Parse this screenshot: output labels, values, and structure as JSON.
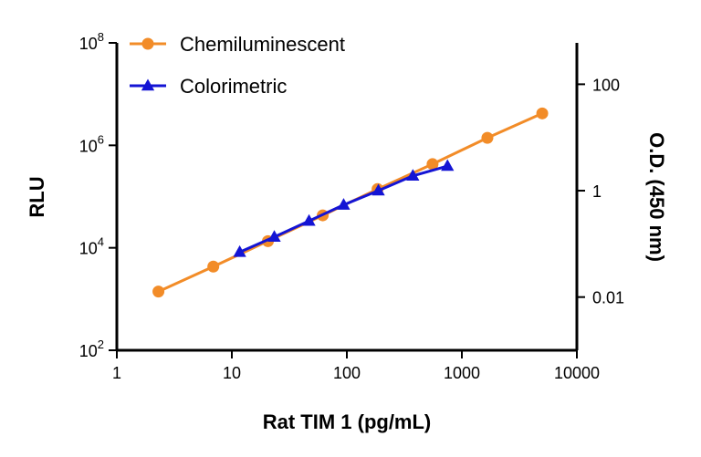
{
  "chart_data": {
    "type": "line",
    "xlabel": "Rat TIM 1 (pg/mL)",
    "ylabel_left": "RLU",
    "ylabel_right": "O.D. (450 nm)",
    "x_scale": "log",
    "y_left_scale": "log",
    "y_right_scale": "log",
    "xlim": [
      1,
      10000
    ],
    "ylim_left": [
      100,
      100000000
    ],
    "ylim_right": [
      0.001,
      600
    ],
    "x_ticks": [
      {
        "value": 1,
        "label": "1"
      },
      {
        "value": 10,
        "label": "10"
      },
      {
        "value": 100,
        "label": "100"
      },
      {
        "value": 1000,
        "label": "1000"
      },
      {
        "value": 10000,
        "label": "10000"
      }
    ],
    "y_left_ticks": [
      {
        "value": 100,
        "base": "10",
        "exp": "2"
      },
      {
        "value": 10000,
        "base": "10",
        "exp": "4"
      },
      {
        "value": 1000000,
        "base": "10",
        "exp": "6"
      },
      {
        "value": 100000000,
        "base": "10",
        "exp": "8"
      }
    ],
    "y_right_ticks": [
      {
        "value": 0.01,
        "label": "0.01"
      },
      {
        "value": 1,
        "label": "1"
      },
      {
        "value": 100,
        "label": "100"
      }
    ],
    "grid": false,
    "legend_position": "top-left",
    "series": [
      {
        "name": "Chemiluminescent",
        "axis": "left",
        "marker": "circle",
        "color": "#F28C28",
        "x": [
          2.3,
          6.9,
          20.6,
          61.7,
          185,
          556,
          1667,
          5000
        ],
        "y": [
          1400,
          4300,
          13500,
          43000,
          140000,
          430000,
          1400000,
          4200000
        ]
      },
      {
        "name": "Colorimetric",
        "axis": "right",
        "marker": "triangle",
        "color": "#1414D4",
        "x": [
          11.7,
          23.4,
          46.9,
          93.8,
          188,
          375,
          750
        ],
        "y": [
          0.07,
          0.135,
          0.27,
          0.54,
          1.0,
          1.9,
          2.9
        ]
      }
    ]
  }
}
